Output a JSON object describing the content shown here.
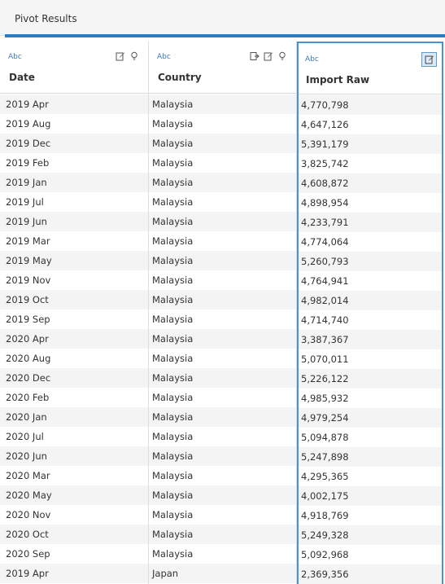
{
  "panel": {
    "title": "Pivot Results"
  },
  "columns": {
    "date": {
      "type": "Abc",
      "name": "Date"
    },
    "country": {
      "type": "Abc",
      "name": "Country"
    },
    "import": {
      "type": "Abc",
      "name": "Import Raw"
    }
  },
  "icons": {
    "date": [
      "edit-icon",
      "lightbulb-icon"
    ],
    "country": [
      "split-icon",
      "edit-icon",
      "lightbulb-icon"
    ],
    "import": [
      "edit-icon"
    ]
  },
  "rows": [
    {
      "date": "2019 Apr",
      "country": "Malaysia",
      "import": "4,770,798"
    },
    {
      "date": "2019 Aug",
      "country": "Malaysia",
      "import": "4,647,126"
    },
    {
      "date": "2019 Dec",
      "country": "Malaysia",
      "import": "5,391,179"
    },
    {
      "date": "2019 Feb",
      "country": "Malaysia",
      "import": "3,825,742"
    },
    {
      "date": "2019 Jan",
      "country": "Malaysia",
      "import": "4,608,872"
    },
    {
      "date": "2019 Jul",
      "country": "Malaysia",
      "import": "4,898,954"
    },
    {
      "date": "2019 Jun",
      "country": "Malaysia",
      "import": "4,233,791"
    },
    {
      "date": "2019 Mar",
      "country": "Malaysia",
      "import": "4,774,064"
    },
    {
      "date": "2019 May",
      "country": "Malaysia",
      "import": "5,260,793"
    },
    {
      "date": "2019 Nov",
      "country": "Malaysia",
      "import": "4,764,941"
    },
    {
      "date": "2019 Oct",
      "country": "Malaysia",
      "import": "4,982,014"
    },
    {
      "date": "2019 Sep",
      "country": "Malaysia",
      "import": "4,714,740"
    },
    {
      "date": "2020 Apr",
      "country": "Malaysia",
      "import": "3,387,367"
    },
    {
      "date": "2020 Aug",
      "country": "Malaysia",
      "import": "5,070,011"
    },
    {
      "date": "2020 Dec",
      "country": "Malaysia",
      "import": "5,226,122"
    },
    {
      "date": "2020 Feb",
      "country": "Malaysia",
      "import": "4,985,932"
    },
    {
      "date": "2020 Jan",
      "country": "Malaysia",
      "import": "4,979,254"
    },
    {
      "date": "2020 Jul",
      "country": "Malaysia",
      "import": "5,094,878"
    },
    {
      "date": "2020 Jun",
      "country": "Malaysia",
      "import": "5,247,898"
    },
    {
      "date": "2020 Mar",
      "country": "Malaysia",
      "import": "4,295,365"
    },
    {
      "date": "2020 May",
      "country": "Malaysia",
      "import": "4,002,175"
    },
    {
      "date": "2020 Nov",
      "country": "Malaysia",
      "import": "4,918,769"
    },
    {
      "date": "2020 Oct",
      "country": "Malaysia",
      "import": "5,249,328"
    },
    {
      "date": "2020 Sep",
      "country": "Malaysia",
      "import": "5,092,968"
    },
    {
      "date": "2019 Apr",
      "country": "Japan",
      "import": "2,369,356"
    }
  ],
  "colors": {
    "accent": "#2f7bbf",
    "selection": "#4a93d3",
    "type_label": "#3b7ab8"
  }
}
